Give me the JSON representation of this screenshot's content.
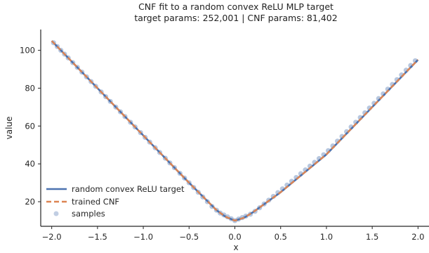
{
  "chart_data": {
    "type": "line",
    "title": "CNF fit to a random convex ReLU MLP target",
    "subtitle": "target params: 252,001 | CNF params: 81,402",
    "xlabel": "x",
    "ylabel": "value",
    "xlim": [
      -2.12,
      2.12
    ],
    "ylim": [
      7,
      111
    ],
    "xticks": [
      {
        "value": -2.0,
        "label": "−2.0"
      },
      {
        "value": -1.5,
        "label": "−1.5"
      },
      {
        "value": -1.0,
        "label": "−1.0"
      },
      {
        "value": -0.5,
        "label": "−0.5"
      },
      {
        "value": 0.0,
        "label": "0.0"
      },
      {
        "value": 0.5,
        "label": "0.5"
      },
      {
        "value": 1.0,
        "label": "1.0"
      },
      {
        "value": 1.5,
        "label": "1.5"
      },
      {
        "value": 2.0,
        "label": "2.0"
      }
    ],
    "yticks": [
      {
        "value": 20,
        "label": "20"
      },
      {
        "value": 40,
        "label": "40"
      },
      {
        "value": 60,
        "label": "60"
      },
      {
        "value": 80,
        "label": "80"
      },
      {
        "value": 100,
        "label": "100"
      }
    ],
    "grid": false,
    "legend_position": "lower-left",
    "series": [
      {
        "name": "random convex ReLU target",
        "kind": "line",
        "color": "#4c72b0",
        "x": [
          -2.0,
          -1.5,
          -1.0,
          -0.5,
          -0.2,
          -0.1,
          0.0,
          0.1,
          0.2,
          0.5,
          1.0,
          1.5,
          2.0
        ],
        "y": [
          105,
          80,
          55,
          30,
          15.5,
          12,
          10,
          11.5,
          14.5,
          25,
          45,
          70,
          95
        ]
      },
      {
        "name": "trained CNF",
        "kind": "dashed-line",
        "color": "#dd8452",
        "x": [
          -2.0,
          -1.5,
          -1.0,
          -0.5,
          -0.2,
          -0.1,
          0.0,
          0.1,
          0.2,
          0.5,
          1.0,
          1.5,
          2.0
        ],
        "y": [
          105,
          80,
          55,
          30,
          15.5,
          12,
          10,
          11.5,
          14.5,
          25,
          45,
          70,
          95
        ]
      },
      {
        "name": "samples",
        "kind": "scatter",
        "color": "#4c72b0",
        "x": [
          -1.98,
          -1.94,
          -1.9,
          -1.86,
          -1.82,
          -1.77,
          -1.72,
          -1.67,
          -1.62,
          -1.57,
          -1.52,
          -1.46,
          -1.41,
          -1.36,
          -1.3,
          -1.25,
          -1.2,
          -1.14,
          -1.09,
          -1.03,
          -0.98,
          -0.93,
          -0.87,
          -0.82,
          -0.76,
          -0.71,
          -0.66,
          -0.6,
          -0.55,
          -0.5,
          -0.45,
          -0.4,
          -0.35,
          -0.3,
          -0.25,
          -0.2,
          -0.16,
          -0.12,
          -0.08,
          -0.04,
          0.0,
          0.04,
          0.08,
          0.12,
          0.17,
          0.22,
          0.27,
          0.32,
          0.37,
          0.42,
          0.47,
          0.52,
          0.57,
          0.62,
          0.67,
          0.72,
          0.77,
          0.82,
          0.87,
          0.92,
          0.97,
          1.02,
          1.07,
          1.12,
          1.17,
          1.22,
          1.27,
          1.32,
          1.37,
          1.42,
          1.47,
          1.52,
          1.57,
          1.62,
          1.67,
          1.72,
          1.77,
          1.82,
          1.87,
          1.92,
          1.97
        ],
        "y": [
          104,
          102,
          100,
          98,
          96,
          93.5,
          91,
          88.5,
          86,
          83.5,
          81,
          78,
          75.5,
          73,
          70,
          67.5,
          65,
          62,
          59.5,
          56.5,
          54,
          51.5,
          48.5,
          46,
          43,
          40.5,
          38,
          35,
          32.5,
          30,
          27.5,
          25,
          22.5,
          20,
          17.5,
          15.5,
          14,
          13,
          12,
          11,
          10,
          10.8,
          11.6,
          12.4,
          13.4,
          14.9,
          16.8,
          18.8,
          20.8,
          22.8,
          24.8,
          26.8,
          28.8,
          30.8,
          32.8,
          34.8,
          36.8,
          38.8,
          40.8,
          42.8,
          44.8,
          47,
          49.5,
          52,
          54.5,
          57,
          59.5,
          62,
          64.5,
          67,
          69.5,
          72,
          74.5,
          77,
          79.5,
          82,
          84.5,
          87,
          89.5,
          92,
          94.5
        ]
      }
    ]
  },
  "colors": {
    "target": "#4c72b0",
    "cnf": "#dd8452",
    "samples": "#4c72b0",
    "axis": "#262626"
  }
}
